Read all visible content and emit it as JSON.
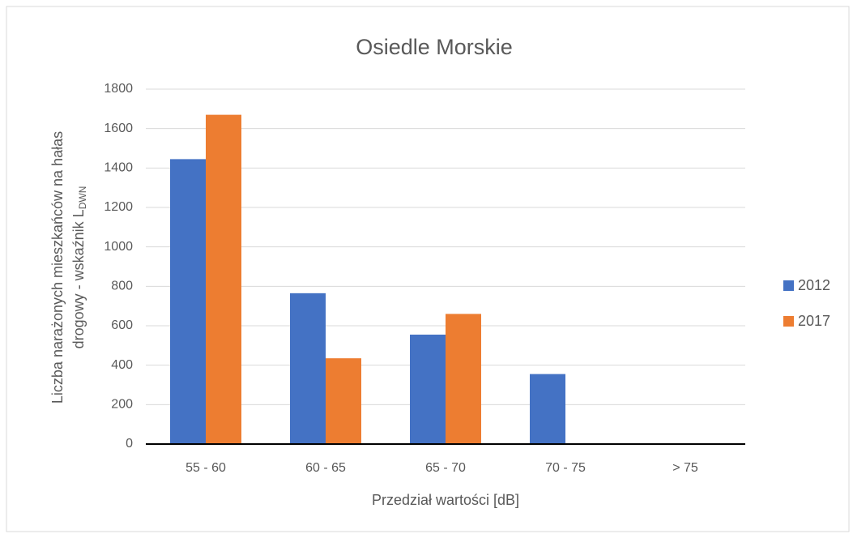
{
  "chart_data": {
    "type": "bar",
    "title": "Osiedle Morskie",
    "x_label": "Przedział wartości [dB]",
    "y_label": {
      "line1": "Liczba narażonych mieszkańców na hałas",
      "line2": "drogowy - wskaźnik L",
      "subscript": "DWN"
    },
    "categories": [
      "55 - 60",
      "60 - 65",
      "65 - 70",
      "70 - 75",
      "> 75"
    ],
    "series": [
      {
        "name": "2012",
        "color": "#4472c4",
        "values": [
          1445,
          765,
          555,
          355,
          0
        ]
      },
      {
        "name": "2017",
        "color": "#ed7d31",
        "values": [
          1670,
          435,
          660,
          0,
          0
        ]
      }
    ],
    "ylim": [
      0,
      1800
    ],
    "yticks": [
      0,
      200,
      400,
      600,
      800,
      1000,
      1200,
      1400,
      1600,
      1800
    ],
    "grid": true,
    "legend": "right"
  }
}
